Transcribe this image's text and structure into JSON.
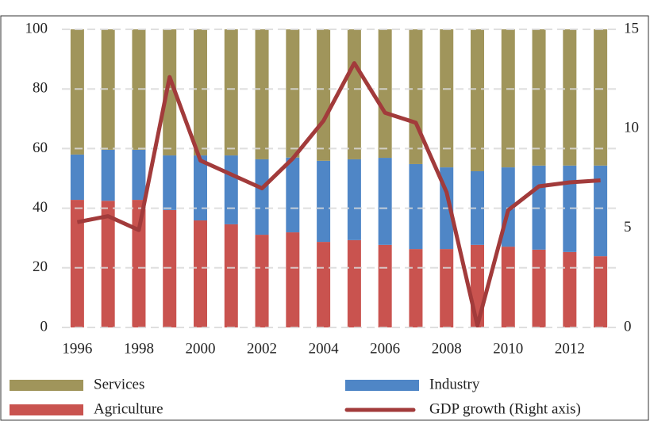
{
  "chart_data": {
    "type": "bar",
    "stacked": true,
    "categories": [
      "1996",
      null,
      "1998",
      null,
      "2000",
      null,
      "2002",
      null,
      "2004",
      null,
      "2006",
      null,
      "2008",
      null,
      "2010",
      null,
      "2012",
      null
    ],
    "series": [
      {
        "name": "Agriculture",
        "color": "#c9534f",
        "values": [
          42.8,
          42.5,
          42.8,
          39.4,
          35.9,
          34.6,
          31.1,
          31.9,
          28.7,
          29.3,
          27.7,
          26.3,
          26.3,
          27.7,
          27.1,
          26.1,
          25.3,
          23.9
        ]
      },
      {
        "name": "Industry",
        "color": "#4f86c6",
        "values": [
          15.2,
          17.1,
          16.8,
          18.3,
          21.8,
          23.1,
          25.3,
          25.1,
          27.2,
          27.1,
          29.2,
          28.5,
          27.4,
          24.7,
          26.6,
          28.2,
          29.0,
          30.4
        ]
      },
      {
        "name": "Services",
        "color": "#a0955b",
        "values": [
          42.0,
          40.4,
          40.4,
          42.3,
          42.3,
          42.3,
          43.6,
          43.0,
          44.1,
          43.6,
          43.1,
          45.2,
          46.3,
          47.6,
          46.3,
          45.7,
          45.7,
          45.7
        ]
      },
      {
        "name": "GDP growth (Right axis)",
        "color": "#a23b3b",
        "type": "line",
        "axis": "y2",
        "values": [
          5.3,
          5.6,
          4.9,
          12.6,
          8.4,
          7.7,
          7.0,
          8.5,
          10.4,
          13.3,
          10.8,
          10.3,
          6.8,
          0.1,
          5.9,
          7.1,
          7.3,
          7.4
        ]
      }
    ],
    "ylim": [
      0,
      100
    ],
    "yticks": [
      0,
      20,
      40,
      60,
      80,
      100
    ],
    "y2lim": [
      0,
      15
    ],
    "y2ticks": [
      0,
      5,
      10,
      15
    ],
    "grid": true,
    "legend": "bottom"
  }
}
